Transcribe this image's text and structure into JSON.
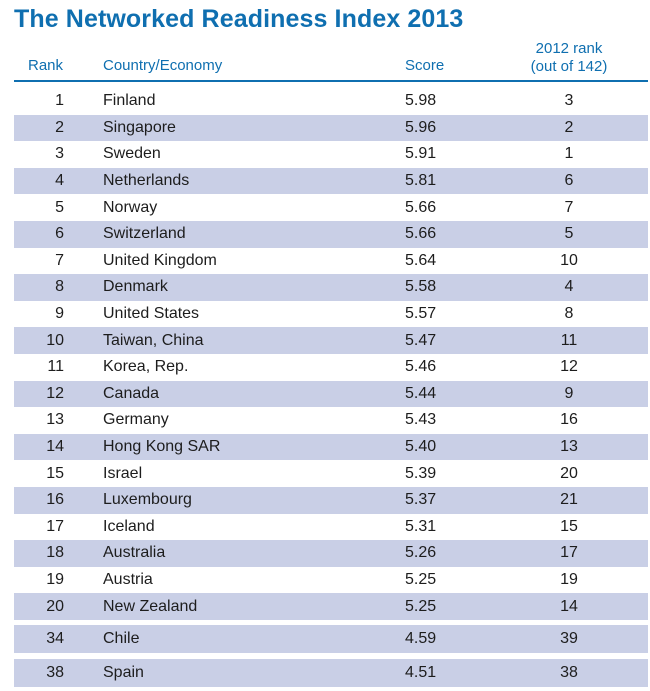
{
  "title": "The Networked Readiness Index 2013",
  "header": {
    "rank": "Rank",
    "country": "Country/Economy",
    "score": "Score",
    "prev_rank_line1": "2012 rank",
    "prev_rank_line2": "(out of 142)"
  },
  "colors": {
    "accent": "#0f6fb0",
    "row_shade": "#c9cfe6"
  },
  "rows": [
    {
      "rank": "1",
      "country": "Finland",
      "score": "5.98",
      "prev": "3"
    },
    {
      "rank": "2",
      "country": "Singapore",
      "score": "5.96",
      "prev": "2"
    },
    {
      "rank": "3",
      "country": "Sweden",
      "score": "5.91",
      "prev": "1"
    },
    {
      "rank": "4",
      "country": "Netherlands",
      "score": "5.81",
      "prev": "6"
    },
    {
      "rank": "5",
      "country": "Norway",
      "score": "5.66",
      "prev": "7"
    },
    {
      "rank": "6",
      "country": "Switzerland",
      "score": "5.66",
      "prev": "5"
    },
    {
      "rank": "7",
      "country": "United Kingdom",
      "score": "5.64",
      "prev": "10"
    },
    {
      "rank": "8",
      "country": "Denmark",
      "score": "5.58",
      "prev": "4"
    },
    {
      "rank": "9",
      "country": "United States",
      "score": "5.57",
      "prev": "8"
    },
    {
      "rank": "10",
      "country": "Taiwan, China",
      "score": "5.47",
      "prev": "11"
    },
    {
      "rank": "11",
      "country": "Korea, Rep.",
      "score": "5.46",
      "prev": "12"
    },
    {
      "rank": "12",
      "country": "Canada",
      "score": "5.44",
      "prev": "9"
    },
    {
      "rank": "13",
      "country": "Germany",
      "score": "5.43",
      "prev": "16"
    },
    {
      "rank": "14",
      "country": "Hong Kong SAR",
      "score": "5.40",
      "prev": "13"
    },
    {
      "rank": "15",
      "country": "Israel",
      "score": "5.39",
      "prev": "20"
    },
    {
      "rank": "16",
      "country": "Luxembourg",
      "score": "5.37",
      "prev": "21"
    },
    {
      "rank": "17",
      "country": "Iceland",
      "score": "5.31",
      "prev": "15"
    },
    {
      "rank": "18",
      "country": "Australia",
      "score": "5.26",
      "prev": "17"
    },
    {
      "rank": "19",
      "country": "Austria",
      "score": "5.25",
      "prev": "19"
    },
    {
      "rank": "20",
      "country": "New Zealand",
      "score": "5.25",
      "prev": "14"
    },
    {
      "rank": "34",
      "country": "Chile",
      "score": "4.59",
      "prev": "39"
    },
    {
      "rank": "38",
      "country": "Spain",
      "score": "4.51",
      "prev": "38"
    }
  ]
}
